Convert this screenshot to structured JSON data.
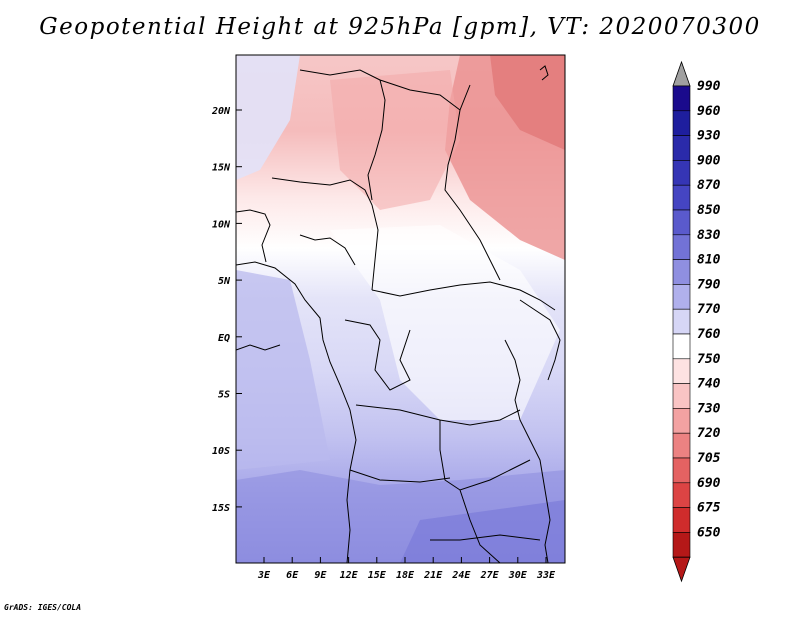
{
  "title": "Geopotential Height at 925hPa [gpm], VT: 2020070300",
  "credit": "GrADS: IGES/COLA",
  "map": {
    "lat_ticks": [
      "20N",
      "15N",
      "10N",
      "5N",
      "EQ",
      "5S",
      "10S",
      "15S"
    ],
    "lon_ticks": [
      "3E",
      "6E",
      "9E",
      "12E",
      "15E",
      "18E",
      "21E",
      "24E",
      "27E",
      "30E",
      "33E"
    ]
  },
  "colorbar": {
    "labels": [
      "990",
      "960",
      "930",
      "900",
      "870",
      "850",
      "830",
      "810",
      "790",
      "770",
      "760",
      "750",
      "740",
      "730",
      "720",
      "705",
      "690",
      "675",
      "650"
    ],
    "colors": [
      "#1a0a8c",
      "#1e1e9e",
      "#2a2aaa",
      "#3535b5",
      "#4545c2",
      "#5a5acc",
      "#7272d6",
      "#8f8fe0",
      "#b0b0ec",
      "#d6d6f6",
      "#ffffff",
      "#fde2e2",
      "#f9c4c4",
      "#f3a2a2",
      "#ec8282",
      "#e46262",
      "#dc4444",
      "#cf2c2c",
      "#b51818"
    ],
    "top_arrow_color": "#a0a0a0",
    "bottom_arrow_color": "#b51818"
  }
}
